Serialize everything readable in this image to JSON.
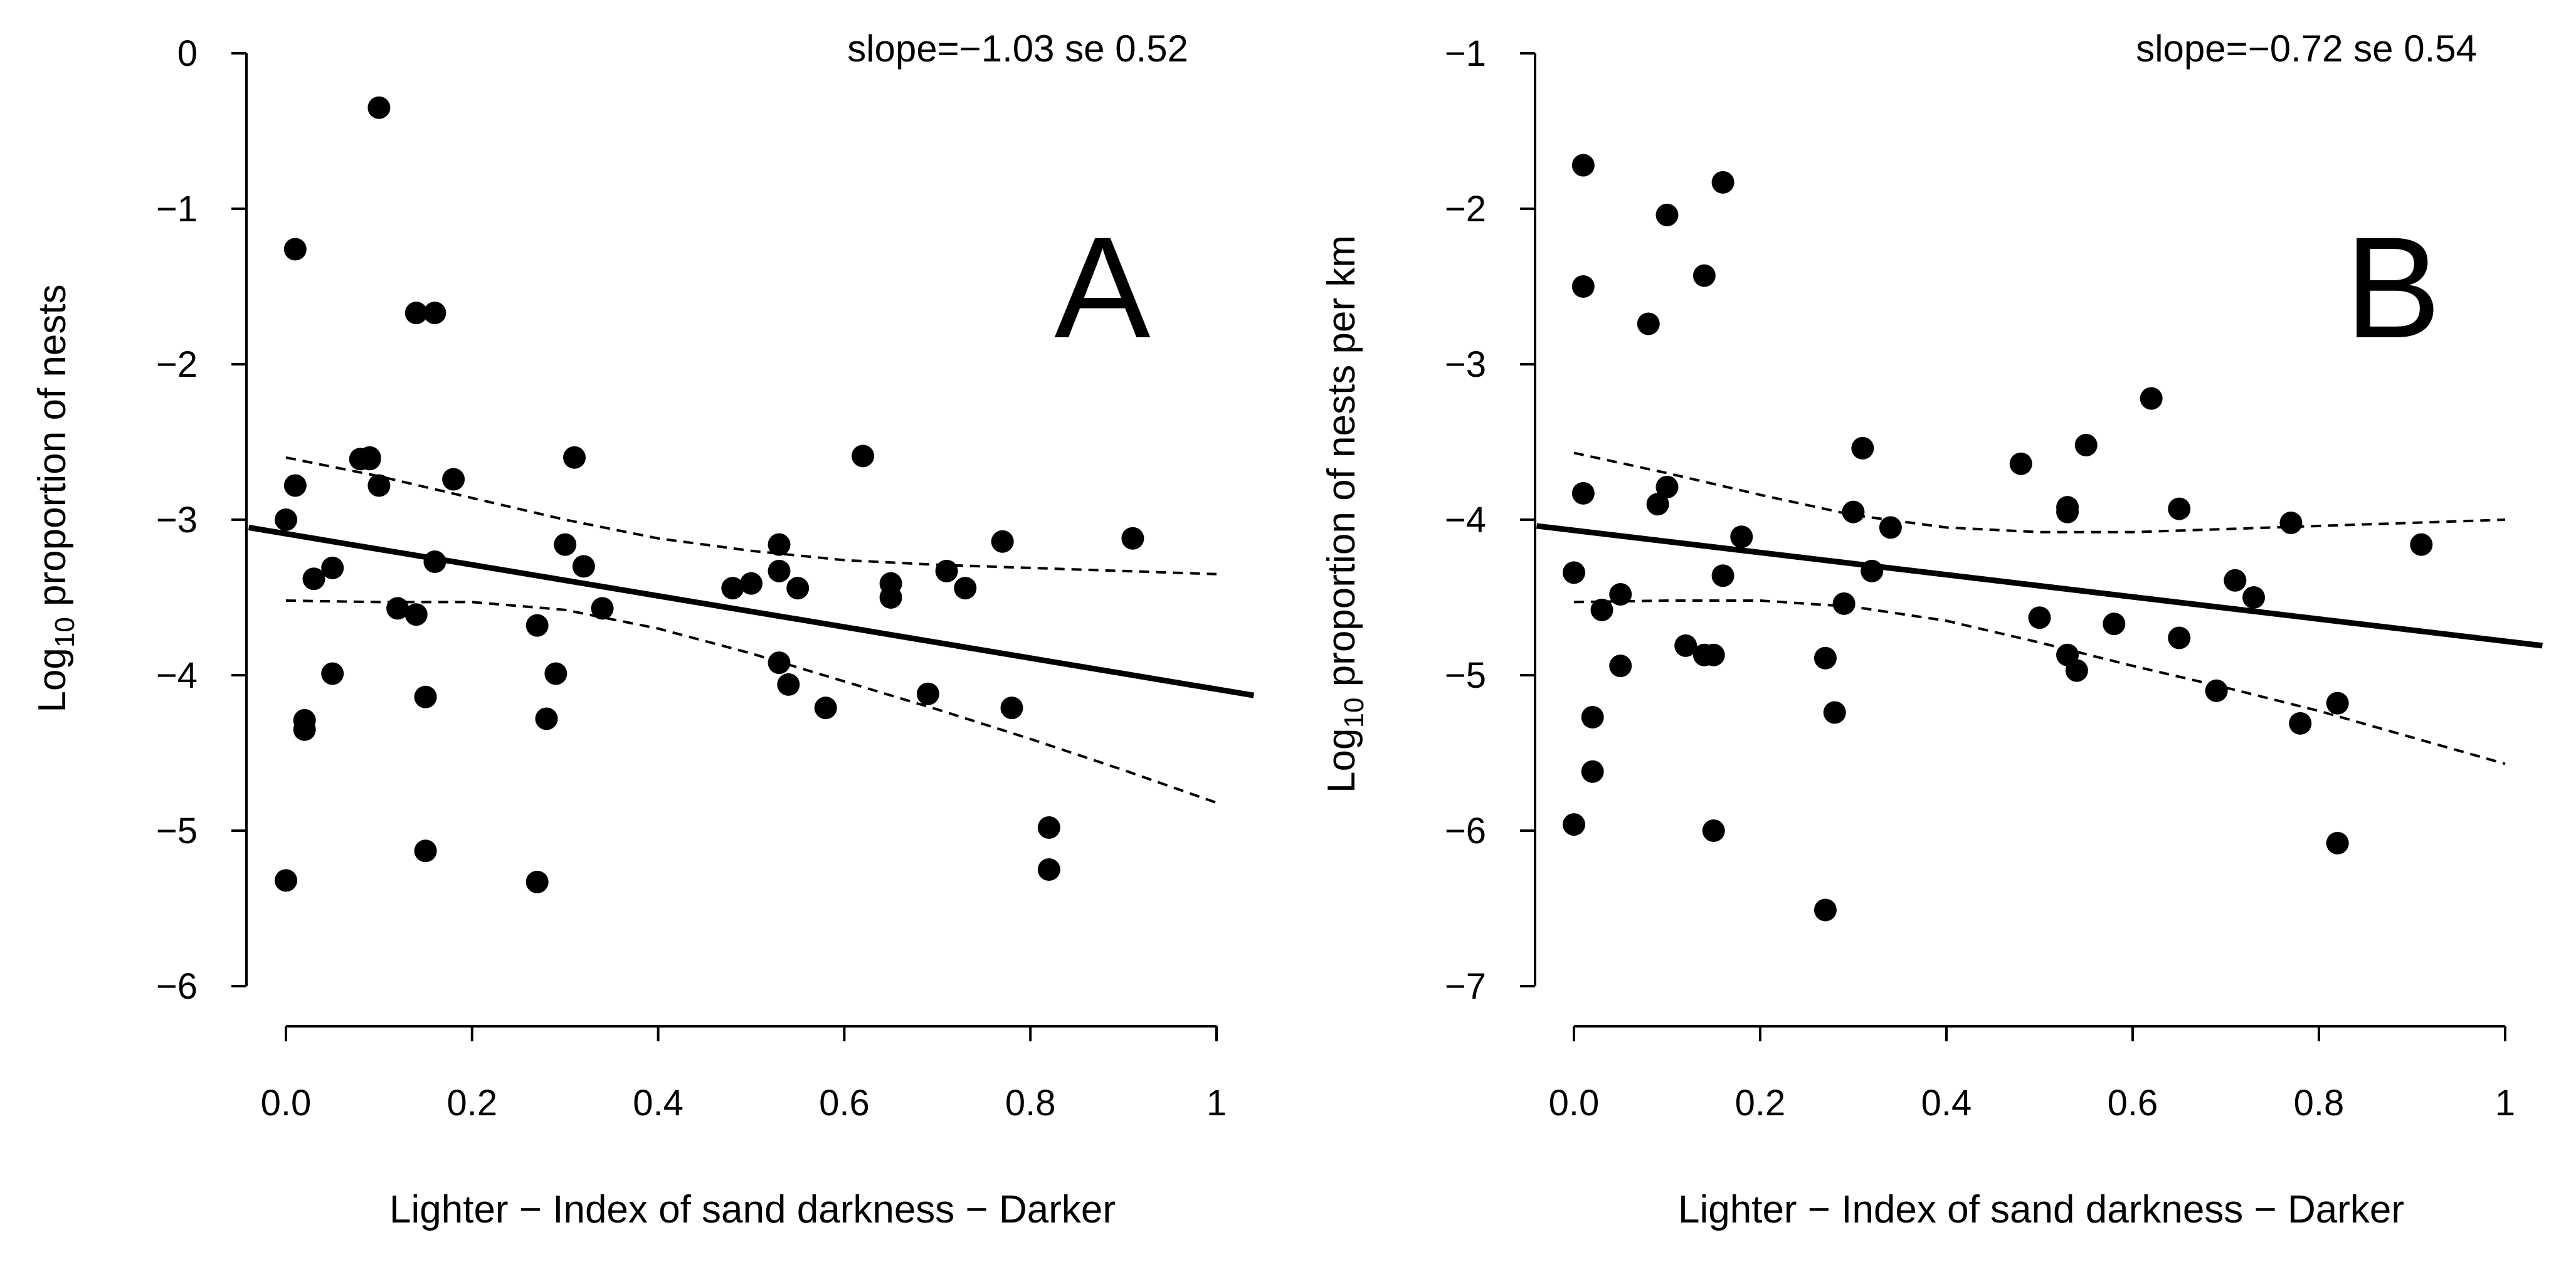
{
  "chart_data": [
    {
      "type": "scatter",
      "panel": "A",
      "ylabel": {
        "prefix": "Log",
        "sub": "10",
        "suffix": " proportion of nests"
      },
      "xlabel": "Lighter − Index of sand darkness − Darker",
      "annotation": "slope=−1.03 se 0.52",
      "xlim": [
        0,
        1
      ],
      "ylim": [
        -6,
        0
      ],
      "xticks": [
        0,
        0.2,
        0.4,
        0.6,
        0.8,
        1
      ],
      "xtick_labels": [
        "0.0",
        "0.2",
        "0.4",
        "0.6",
        "0.8",
        "1"
      ],
      "yticks": [
        0,
        -1,
        -2,
        -3,
        -4,
        -5,
        -6
      ],
      "ytick_labels": [
        "0",
        "−1",
        "−2",
        "−3",
        "−4",
        "−5",
        "−6"
      ],
      "fit_line": {
        "x": [
          -0.04,
          1.04
        ],
        "y": [
          -3.05,
          -4.13
        ]
      },
      "ci_upper": {
        "x": [
          0,
          0.1,
          0.2,
          0.3,
          0.4,
          0.5,
          0.6,
          0.7,
          0.8,
          0.9,
          1.0
        ],
        "y": [
          -2.6,
          -2.72,
          -2.86,
          -3.0,
          -3.12,
          -3.2,
          -3.26,
          -3.29,
          -3.31,
          -3.33,
          -3.35
        ]
      },
      "ci_lower": {
        "x": [
          0,
          0.1,
          0.2,
          0.3,
          0.4,
          0.5,
          0.6,
          0.7,
          0.8,
          0.9,
          1.0
        ],
        "y": [
          -3.52,
          -3.53,
          -3.53,
          -3.58,
          -3.7,
          -3.86,
          -4.04,
          -4.22,
          -4.41,
          -4.61,
          -4.82
        ]
      },
      "points": {
        "x": [
          0.0,
          0.0,
          0.01,
          0.01,
          0.02,
          0.02,
          0.03,
          0.05,
          0.05,
          0.08,
          0.09,
          0.09,
          0.1,
          0.1,
          0.12,
          0.14,
          0.14,
          0.15,
          0.15,
          0.16,
          0.16,
          0.18,
          0.27,
          0.27,
          0.28,
          0.29,
          0.3,
          0.31,
          0.32,
          0.34,
          0.48,
          0.5,
          0.53,
          0.53,
          0.53,
          0.54,
          0.55,
          0.58,
          0.62,
          0.65,
          0.65,
          0.69,
          0.71,
          0.73,
          0.77,
          0.78,
          0.82,
          0.82,
          0.91
        ],
        "y": [
          -3.0,
          -5.32,
          -1.26,
          -2.78,
          -4.29,
          -4.35,
          -3.38,
          -3.31,
          -3.99,
          -2.61,
          -2.6,
          -2.61,
          -0.35,
          -2.78,
          -3.57,
          -3.61,
          -1.67,
          -4.14,
          -5.13,
          -1.67,
          -3.27,
          -2.74,
          -5.33,
          -3.68,
          -4.28,
          -3.99,
          -3.16,
          -2.6,
          -3.3,
          -3.57,
          -3.44,
          -3.41,
          -3.16,
          -3.33,
          -3.92,
          -4.06,
          -3.44,
          -4.21,
          -2.59,
          -3.41,
          -3.5,
          -4.12,
          -3.33,
          -3.44,
          -3.14,
          -4.21,
          -4.98,
          -5.25,
          -3.12
        ]
      }
    },
    {
      "type": "scatter",
      "panel": "B",
      "ylabel": {
        "prefix": "Log",
        "sub": "10",
        "suffix": " proportion of nests per km"
      },
      "xlabel": "Lighter − Index of sand darkness − Darker",
      "annotation": "slope=−0.72 se 0.54",
      "xlim": [
        0,
        1
      ],
      "ylim": [
        -7,
        -1
      ],
      "xticks": [
        0,
        0.2,
        0.4,
        0.6,
        0.8,
        1
      ],
      "xtick_labels": [
        "0.0",
        "0.2",
        "0.4",
        "0.6",
        "0.8",
        "1"
      ],
      "yticks": [
        -1,
        -2,
        -3,
        -4,
        -5,
        -6,
        -7
      ],
      "ytick_labels": [
        "−1",
        "−2",
        "−3",
        "−4",
        "−5",
        "−6",
        "−7"
      ],
      "fit_line": {
        "x": [
          -0.04,
          1.04
        ],
        "y": [
          -4.04,
          -4.81
        ]
      },
      "ci_upper": {
        "x": [
          0,
          0.1,
          0.2,
          0.3,
          0.4,
          0.5,
          0.6,
          0.7,
          0.8,
          0.9,
          1.0
        ],
        "y": [
          -3.57,
          -3.7,
          -3.84,
          -3.97,
          -4.05,
          -4.08,
          -4.08,
          -4.06,
          -4.04,
          -4.02,
          -4.0
        ]
      },
      "ci_lower": {
        "x": [
          0,
          0.1,
          0.2,
          0.3,
          0.4,
          0.5,
          0.6,
          0.7,
          0.8,
          0.9,
          1.0
        ],
        "y": [
          -4.53,
          -4.52,
          -4.52,
          -4.56,
          -4.65,
          -4.79,
          -4.94,
          -5.08,
          -5.23,
          -5.4,
          -5.57
        ]
      },
      "points": {
        "x": [
          0.0,
          0.0,
          0.01,
          0.01,
          0.01,
          0.02,
          0.02,
          0.03,
          0.05,
          0.05,
          0.08,
          0.09,
          0.1,
          0.1,
          0.12,
          0.14,
          0.14,
          0.15,
          0.15,
          0.16,
          0.16,
          0.18,
          0.27,
          0.28,
          0.27,
          0.29,
          0.3,
          0.31,
          0.32,
          0.34,
          0.48,
          0.5,
          0.53,
          0.53,
          0.53,
          0.54,
          0.55,
          0.58,
          0.62,
          0.65,
          0.65,
          0.69,
          0.71,
          0.73,
          0.77,
          0.78,
          0.82,
          0.82,
          0.91
        ],
        "y": [
          -4.34,
          -5.96,
          -1.72,
          -2.5,
          -3.83,
          -5.27,
          -5.62,
          -4.58,
          -4.48,
          -4.94,
          -2.74,
          -3.9,
          -2.04,
          -3.79,
          -4.81,
          -2.43,
          -4.87,
          -4.87,
          -6.0,
          -1.83,
          -4.36,
          -4.11,
          -6.51,
          -5.24,
          -4.89,
          -4.54,
          -3.95,
          -3.54,
          -4.33,
          -4.05,
          -3.64,
          -4.63,
          -3.92,
          -3.95,
          -4.87,
          -4.97,
          -3.52,
          -4.67,
          -3.22,
          -3.93,
          -4.76,
          -5.1,
          -4.39,
          -4.5,
          -4.02,
          -5.31,
          -5.18,
          -6.08,
          -4.16
        ]
      }
    }
  ]
}
